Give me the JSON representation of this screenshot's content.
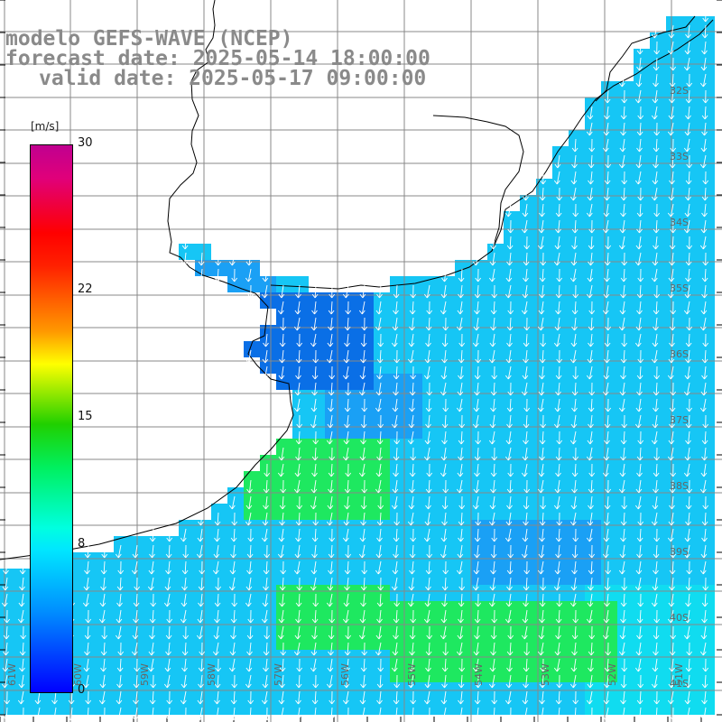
{
  "header": {
    "model_line": "modelo GEFS-WAVE (NCEP)",
    "forecast_line": "forecast date: 2025-05-14 18:00:00",
    "valid_line": "valid date: 2025-05-17 09:00:00"
  },
  "colorbar": {
    "unit": "[m/s]",
    "ticks": [
      {
        "label": "30",
        "value": 30
      },
      {
        "label": "22",
        "value": 22
      },
      {
        "label": "15",
        "value": 15
      },
      {
        "label": "8",
        "value": 8
      },
      {
        "label": "0",
        "value": 0
      }
    ],
    "colors": [
      "#0000ff",
      "#0090ff",
      "#00e6ff",
      "#00ffe0",
      "#20d000",
      "#ffff00",
      "#ff9800",
      "#ff0000",
      "#c00090"
    ]
  },
  "map": {
    "lat_labels": [
      "32S",
      "33S",
      "34S",
      "35S",
      "36S",
      "37S",
      "38S",
      "39S",
      "40S",
      "41S"
    ],
    "lon_labels": [
      "61W",
      "60W",
      "59W",
      "58W",
      "57W",
      "56W",
      "55W",
      "54W",
      "53W",
      "52W",
      "51W"
    ],
    "land_color": "#ffffff",
    "grid_color": "#888888",
    "arrow_color": "#ffffff",
    "dominant_wind_direction": "from north toward south",
    "field_colors": {
      "deep": "#0a6fe6",
      "mid": "#1aa0f5",
      "light": "#16c6f5",
      "cyan": "#10dcf0",
      "green": "#1ee860"
    }
  }
}
